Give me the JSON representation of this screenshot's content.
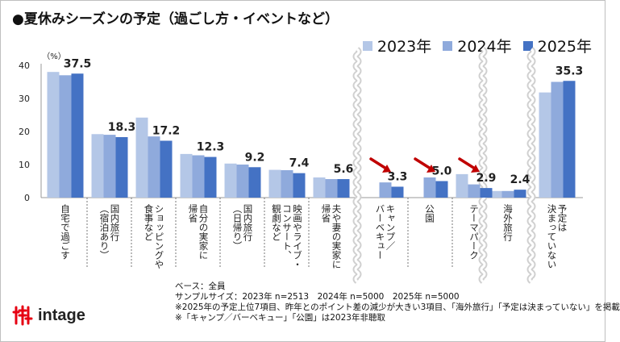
{
  "title": "●夏休みシーズンの予定（過ごし方・イベントなど）",
  "colors": {
    "y2023": "#b4c7e7",
    "y2024": "#8faadc",
    "y2025": "#4472c4",
    "arrow": "#c00000"
  },
  "chart_data": {
    "type": "bar",
    "unit_label": "（%）",
    "ylim": [
      0,
      40
    ],
    "yticks": [
      "0",
      "10",
      "20",
      "30",
      "40"
    ],
    "grid": false,
    "legend_position": "top-right",
    "series": [
      {
        "name": "2023年",
        "values": [
          38.0,
          19.2,
          24.2,
          13.2,
          10.3,
          8.4,
          6.1,
          null,
          null,
          7.1,
          2.0,
          31.8
        ]
      },
      {
        "name": "2024年",
        "values": [
          37.0,
          19.0,
          18.5,
          12.8,
          10.0,
          8.3,
          5.6,
          4.6,
          6.1,
          4.0,
          2.0,
          35.0
        ]
      },
      {
        "name": "2025年",
        "values": [
          37.5,
          18.3,
          17.2,
          12.3,
          9.2,
          7.4,
          5.6,
          3.3,
          5.0,
          2.9,
          2.4,
          35.3
        ]
      }
    ],
    "data_labels": [
      "37.5",
      "18.3",
      "17.2",
      "12.3",
      "9.2",
      "7.4",
      "5.6",
      "3.3",
      "5.0",
      "2.9",
      "2.4",
      "35.3"
    ],
    "categories": [
      [
        "自宅で過ごす"
      ],
      [
        "国内旅行",
        "（宿泊あり）"
      ],
      [
        "ショッピングや",
        "食事など"
      ],
      [
        "自分の実家に",
        "帰省"
      ],
      [
        "国内旅行",
        "（日帰り）"
      ],
      [
        "映画やライブ・",
        "コンサート、",
        "観劇など"
      ],
      [
        "夫や妻の実家に",
        "帰省"
      ],
      [
        "キャンプ／",
        "バーベキュー"
      ],
      [
        "公園"
      ],
      [
        "テーマパーク"
      ],
      [
        "海外旅行"
      ],
      [
        "予定は",
        "決まっていない"
      ]
    ],
    "highlighted_decreases": [
      "キャンプ／バーベキュー",
      "公園",
      "テーマパーク"
    ]
  },
  "notes": [
    "ベース：全員",
    "サンプルサイズ：2023年 n=2513　2024年 n=5000　2025年 n=5000",
    "※2025年の予定上位7項目、昨年とのポイント差の減少が大きい3項目、「海外旅行」「予定は決まっていない」を掲載",
    "※「キャンプ／バーベキュー」「公園」は2023年非聴取"
  ],
  "logo": {
    "text": "intage",
    "mark": "intage-logo-mark"
  }
}
